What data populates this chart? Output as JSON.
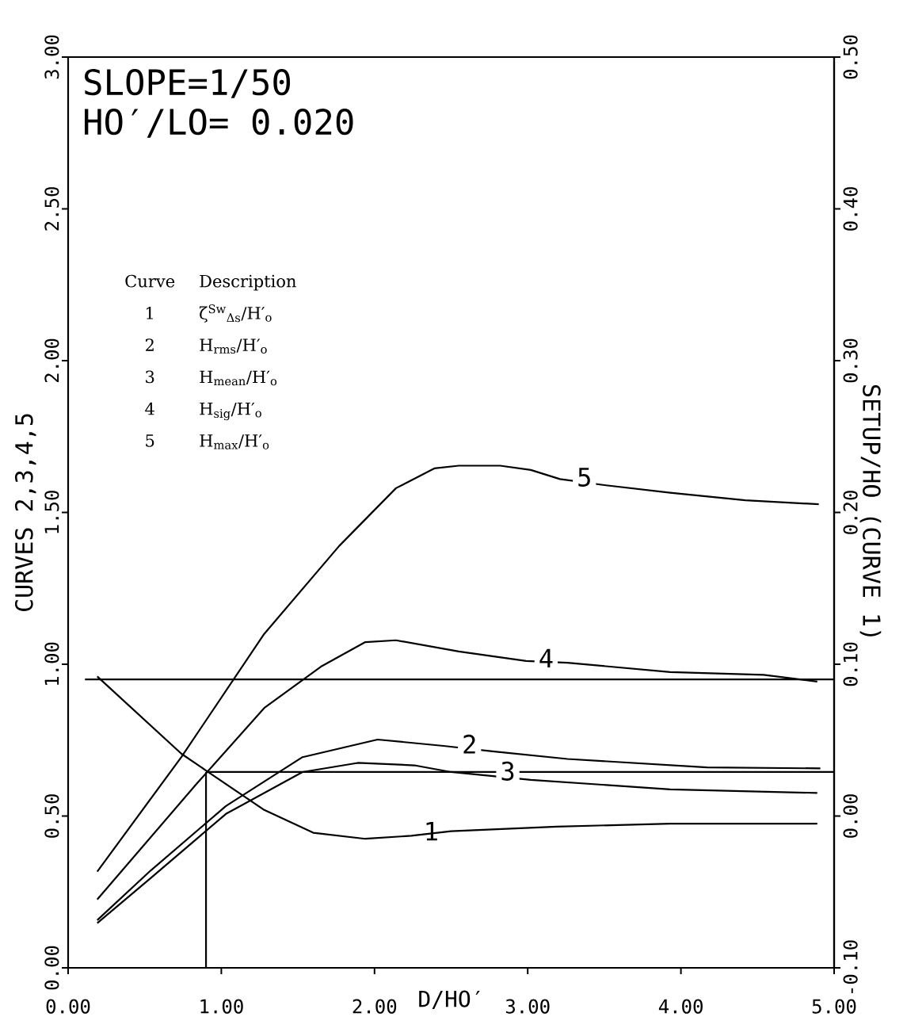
{
  "chart_data": {
    "type": "line",
    "title": "SLOPE=1/50",
    "subtitle": "HO′/LO= 0.020",
    "xlabel": "D/HO′",
    "ylabel": "CURVES 2,3,4,5",
    "y2label": "SETUP/HO (CURVE 1)",
    "xlim": [
      0,
      5
    ],
    "ylim": [
      0,
      3
    ],
    "y2lim": [
      -0.1,
      0.5
    ],
    "xticks": [
      {
        "value": 0,
        "label": "0.00"
      },
      {
        "value": 1,
        "label": "1.00"
      },
      {
        "value": 2,
        "label": "2.00"
      },
      {
        "value": 3,
        "label": "3.00"
      },
      {
        "value": 4,
        "label": "4.00"
      },
      {
        "value": 5,
        "label": "5.00"
      }
    ],
    "yticks": [
      {
        "value": 0,
        "label": "0.00"
      },
      {
        "value": 0.5,
        "label": "0.50"
      },
      {
        "value": 1,
        "label": "1.00"
      },
      {
        "value": 1.5,
        "label": "1.50"
      },
      {
        "value": 2,
        "label": "2.00"
      },
      {
        "value": 2.5,
        "label": "2.50"
      },
      {
        "value": 3,
        "label": "3.00"
      }
    ],
    "y2ticks": [
      {
        "value": -0.1,
        "label": "-0.10"
      },
      {
        "value": 0,
        "label": "0.00"
      },
      {
        "value": 0.1,
        "label": "0.10"
      },
      {
        "value": 0.2,
        "label": "0.20"
      },
      {
        "value": 0.3,
        "label": "0.30"
      },
      {
        "value": 0.4,
        "label": "0.40"
      },
      {
        "value": 0.5,
        "label": "0.50"
      }
    ],
    "series": [
      {
        "color": "#000000",
        "axis": "y2",
        "x": [
          0.19,
          0.74,
          0.9,
          1.28,
          1.6,
          1.94,
          2.24,
          2.5,
          3.19,
          3.93,
          4.89
        ],
        "values": [
          0.092,
          0.041,
          0.03,
          0.004,
          -0.011,
          -0.015,
          -0.013,
          -0.01,
          -0.007,
          -0.005,
          -0.005
        ]
      },
      {
        "color": "#000000",
        "x": [
          0.19,
          0.54,
          1.03,
          1.53,
          2.02,
          2.45,
          2.77,
          3.26,
          4.17,
          4.91
        ],
        "values": [
          0.157,
          0.321,
          0.533,
          0.694,
          0.752,
          0.731,
          0.713,
          0.688,
          0.66,
          0.657
        ]
      },
      {
        "color": "#000000",
        "x": [
          0.19,
          0.54,
          1.03,
          1.53,
          1.89,
          2.26,
          2.5,
          3.02,
          3.93,
          4.89
        ],
        "values": [
          0.147,
          0.296,
          0.507,
          0.645,
          0.675,
          0.667,
          0.645,
          0.619,
          0.588,
          0.576
        ]
      },
      {
        "color": "#000000",
        "x": [
          0.19,
          0.84,
          1.28,
          1.65,
          1.94,
          2.14,
          2.55,
          2.99,
          3.26,
          3.93,
          4.54,
          4.89
        ],
        "values": [
          0.225,
          0.607,
          0.856,
          0.992,
          1.073,
          1.079,
          1.042,
          1.011,
          1.005,
          0.974,
          0.965,
          0.943
        ]
      },
      {
        "color": "#000000",
        "x": [
          0.19,
          0.74,
          1.28,
          1.77,
          2.14,
          2.39,
          2.55,
          2.82,
          3.02,
          3.21,
          3.5,
          3.93,
          4.42,
          4.9
        ],
        "values": [
          0.317,
          0.695,
          1.1,
          1.39,
          1.58,
          1.645,
          1.654,
          1.654,
          1.64,
          1.61,
          1.59,
          1.565,
          1.54,
          1.527
        ]
      },
      {
        "color": "#000000",
        "x": [
          0.11,
          5.0
        ],
        "values": [
          0.95,
          0.95
        ]
      },
      {
        "color": "#000000",
        "x": [
          0.9,
          5.0
        ],
        "values": [
          0.645,
          0.645
        ]
      },
      {
        "color": "#000000",
        "x": [
          0.9,
          0.9
        ],
        "values": [
          0,
          0.645
        ]
      }
    ],
    "annotations": [
      "Curve",
      "Description",
      "1",
      "ζ$^{Sw}$$_{Δs}$/H′$_{o}$",
      "2",
      "H$_{rms}$/H′$_{o}$",
      "3",
      "H$_{mean}$/H′$_{o}$",
      "4",
      "H$_{sig}$/H′$_{o}$",
      "5",
      "H$_{max}$/H′$_{o}$",
      {
        "text": "5",
        "x": 3.37,
        "y": 1.616
      },
      {
        "text": "4",
        "x": 3.12,
        "y": 1.02
      },
      {
        "text": "2",
        "x": 2.62,
        "y": 0.737
      },
      {
        "text": "3",
        "x": 2.87,
        "y": 0.648
      },
      {
        "text": "1",
        "x": 2.37,
        "y": 0.45
      }
    ]
  }
}
